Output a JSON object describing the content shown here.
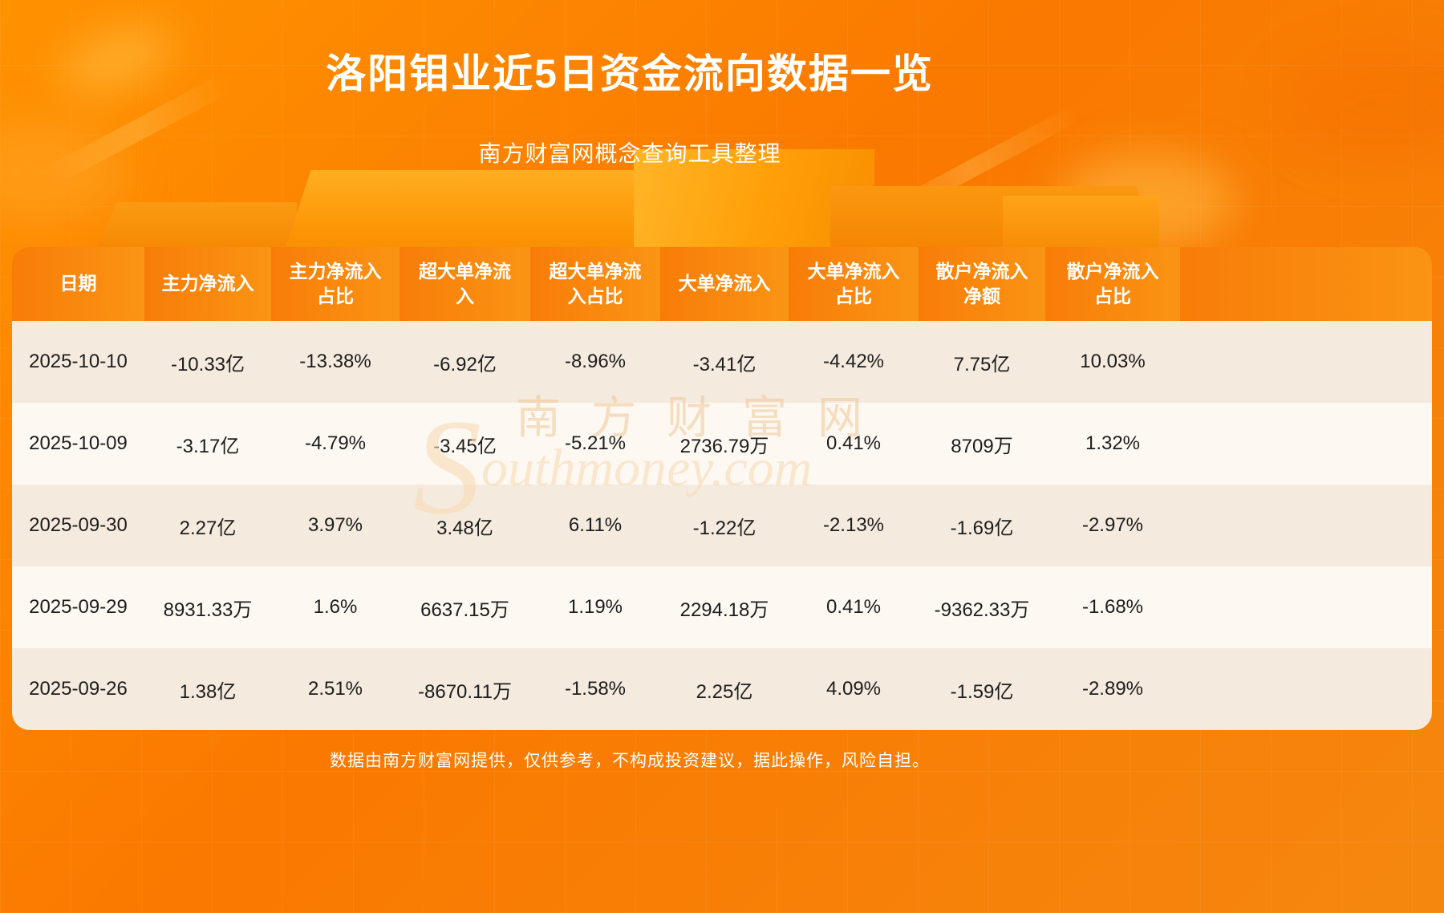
{
  "header": {
    "title": "洛阳钼业近5日资金流向数据一览",
    "subtitle": "南方财富网概念查询工具整理"
  },
  "watermark": {
    "cn": "南方财富网",
    "s": "S",
    "rest": "outhmoney.com"
  },
  "footer": {
    "disclaimer": "数据由南方财富网提供，仅供参考，不构成投资建议，据此操作，风险自担。"
  },
  "colors": {
    "bg_top": "#ff9200",
    "bg_mid": "#fa7900",
    "bg_bottom": "#f5870f",
    "table_header_l": "#f87d08",
    "table_header_r": "#fa9414",
    "row_odd": "#f4eade",
    "row_even": "#fdf8f2",
    "title_text": "#ffffff"
  },
  "chart_data": {
    "type": "table",
    "title": "洛阳钼业近5日资金流向数据一览",
    "columns": [
      "日期",
      "主力净流入",
      "主力净流入\n占比",
      "超大单净流\n入",
      "超大单净流\n入占比",
      "大单净流入",
      "大单净流入\n占比",
      "散户净流入\n净额",
      "散户净流入\n占比"
    ],
    "rows": [
      [
        "2025-10-10",
        "-10.33亿",
        "-13.38%",
        "-6.92亿",
        "-8.96%",
        "-3.41亿",
        "-4.42%",
        "7.75亿",
        "10.03%"
      ],
      [
        "2025-10-09",
        "-3.17亿",
        "-4.79%",
        "-3.45亿",
        "-5.21%",
        "2736.79万",
        "0.41%",
        "8709万",
        "1.32%"
      ],
      [
        "2025-09-30",
        "2.27亿",
        "3.97%",
        "3.48亿",
        "6.11%",
        "-1.22亿",
        "-2.13%",
        "-1.69亿",
        "-2.97%"
      ],
      [
        "2025-09-29",
        "8931.33万",
        "1.6%",
        "6637.15万",
        "1.19%",
        "2294.18万",
        "0.41%",
        "-9362.33万",
        "-1.68%"
      ],
      [
        "2025-09-26",
        "1.38亿",
        "2.51%",
        "-8670.11万",
        "-1.58%",
        "2.25亿",
        "4.09%",
        "-1.59亿",
        "-2.89%"
      ]
    ]
  }
}
